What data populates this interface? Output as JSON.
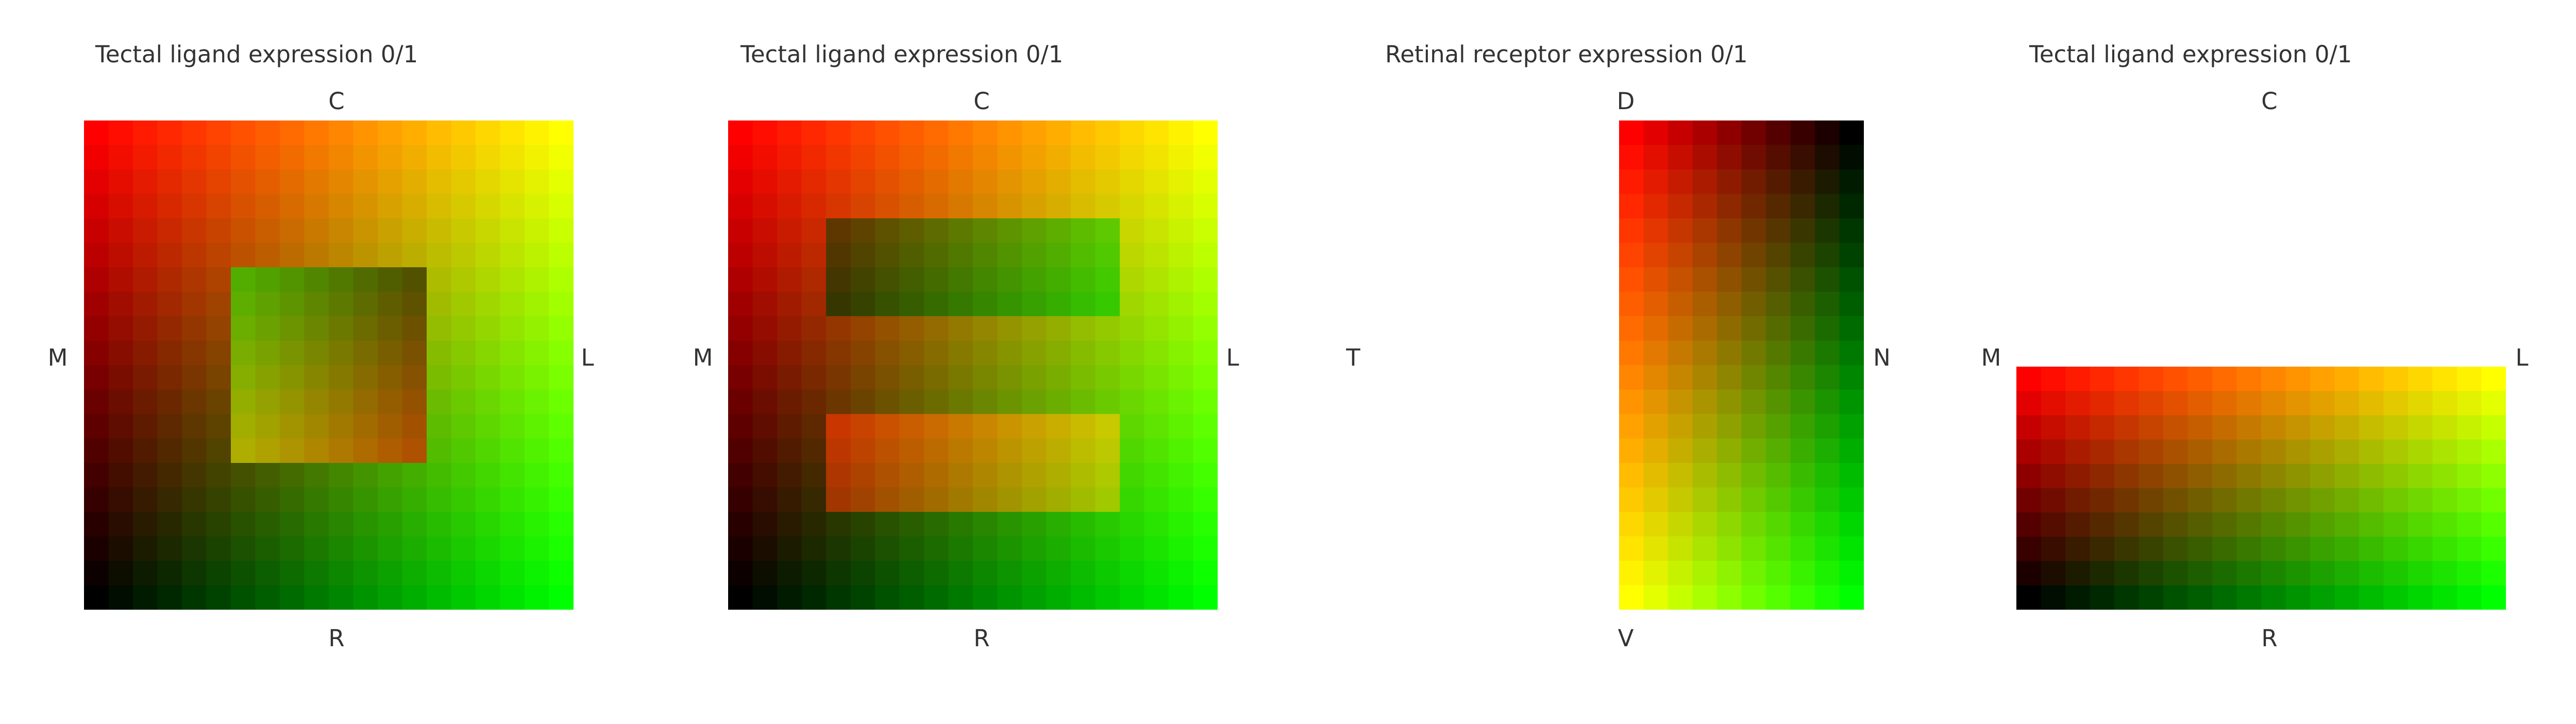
{
  "panels": [
    {
      "title": "Tectal ligand expression 0/1",
      "labels": {
        "top": "C",
        "bottom": "R",
        "left": "M",
        "right": "L"
      },
      "grid": {
        "cols": 20,
        "rows": 20,
        "max_row": 20
      },
      "overlays": [
        {
          "type": "rotate",
          "cells": [
            6,
            6,
            8,
            8
          ]
        }
      ]
    },
    {
      "title": "Tectal ligand expression 0/1",
      "labels": {
        "top": "C",
        "bottom": "R",
        "left": "M",
        "right": "L"
      },
      "grid": {
        "cols": 20,
        "rows": 20,
        "max_row": 20
      },
      "overlays": [
        {
          "type": "swap",
          "cells": [
            4,
            4,
            12,
            4
          ],
          "partner": [
            4,
            12,
            12,
            4
          ]
        }
      ]
    },
    {
      "title": "Retinal receptor expression 0/1",
      "labels": {
        "top": "D",
        "bottom": "V",
        "left": "T",
        "right": "N"
      },
      "grid": {
        "cols": 10,
        "rows": 20
      }
    },
    {
      "title": "Tectal ligand expression 0/1",
      "labels": {
        "top": "C",
        "bottom": "R",
        "left": "M",
        "right": "L"
      },
      "grid": {
        "cols": 20,
        "rows": 10,
        "max_row": 10
      }
    }
  ]
}
